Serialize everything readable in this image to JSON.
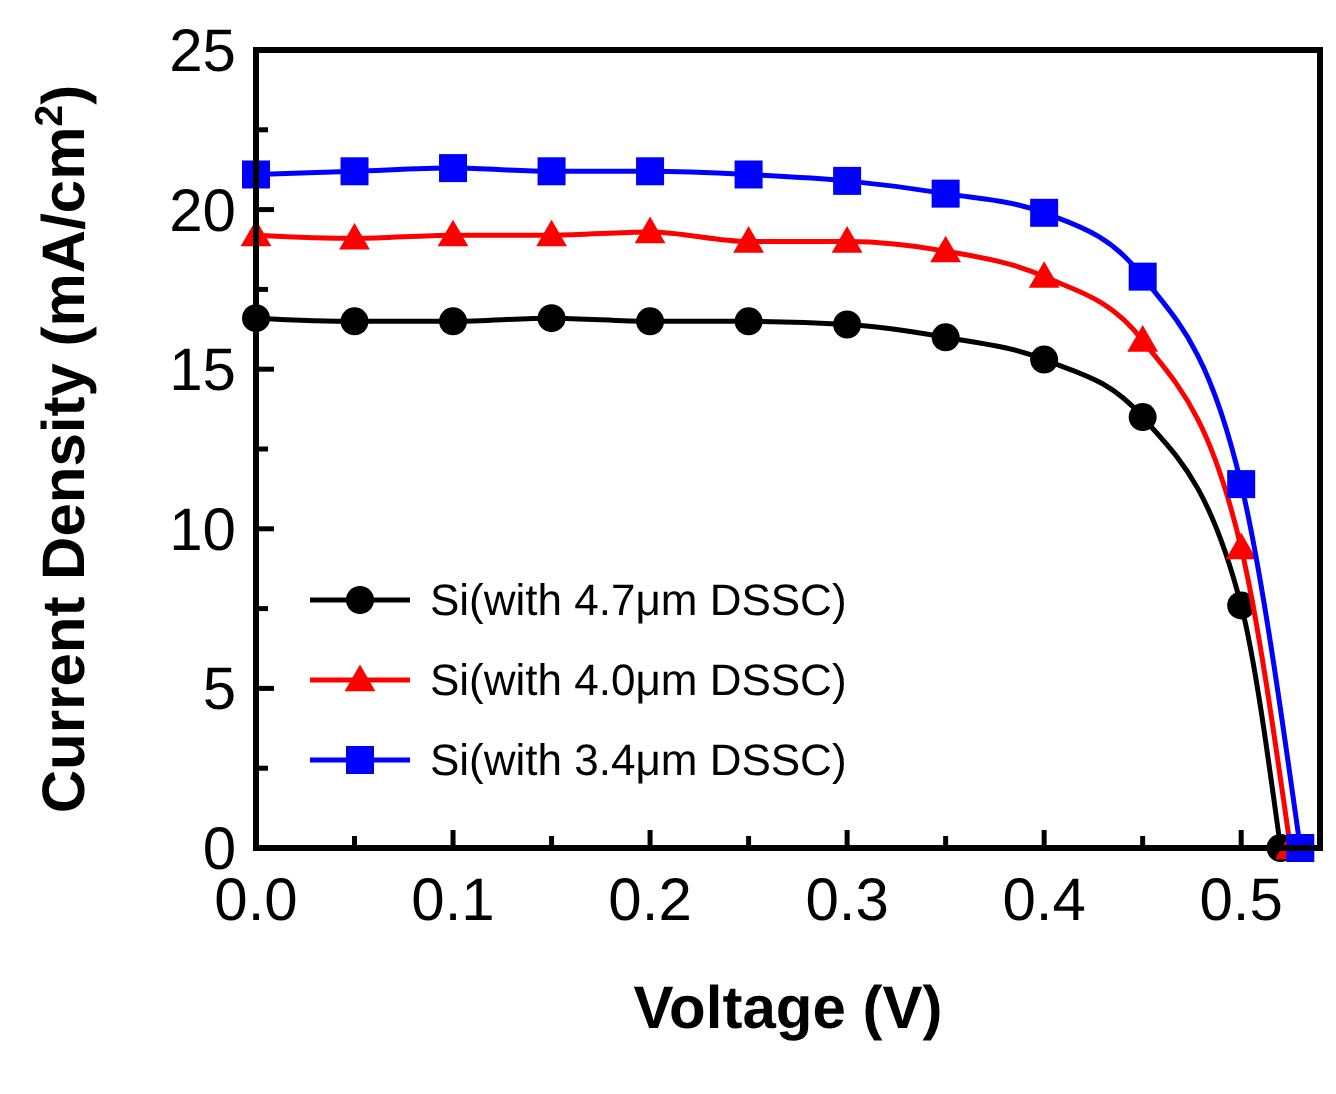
{
  "chart_data": {
    "type": "line",
    "xlabel": "Voltage (V)",
    "ylabel": "Current Density (mA/cm$^{2}$)",
    "x": [
      0,
      0.05,
      0.1,
      0.15,
      0.2,
      0.25,
      0.3,
      0.35,
      0.4,
      0.45,
      0.5,
      0.52
    ],
    "series": [
      {
        "name": "Si(with 4.7μm DSSC)",
        "color": "#000000",
        "marker": "circle",
        "values": [
          16.6,
          16.5,
          16.5,
          16.6,
          16.5,
          16.5,
          16.4,
          16.0,
          15.3,
          13.5,
          7.6,
          0
        ]
      },
      {
        "name": "Si(with 4.0μm DSSC)",
        "color": "#ff0000",
        "marker": "triangle",
        "x": [
          0,
          0.05,
          0.1,
          0.15,
          0.2,
          0.25,
          0.3,
          0.35,
          0.4,
          0.45,
          0.5,
          0.525
        ],
        "values": [
          19.2,
          19.1,
          19.2,
          19.2,
          19.3,
          19.0,
          19.0,
          18.7,
          17.9,
          15.9,
          9.4,
          0
        ]
      },
      {
        "name": "Si(with 3.4μm DSSC)",
        "color": "#0000ff",
        "marker": "square",
        "x": [
          0,
          0.05,
          0.1,
          0.15,
          0.2,
          0.25,
          0.3,
          0.35,
          0.4,
          0.45,
          0.5,
          0.53
        ],
        "values": [
          21.1,
          21.2,
          21.3,
          21.2,
          21.2,
          21.1,
          20.9,
          20.5,
          19.9,
          17.9,
          11.4,
          0
        ]
      }
    ],
    "xlim": [
      0,
      0.54
    ],
    "ylim": [
      0,
      25
    ],
    "xticks": [
      {
        "value": 0,
        "label": "0.0"
      },
      {
        "value": 0.05,
        "label": null
      },
      0.1,
      {
        "value": 0.15,
        "label": null
      },
      0.2,
      {
        "value": 0.25,
        "label": null
      },
      0.3,
      {
        "value": 0.35,
        "label": null
      },
      0.4,
      {
        "value": 0.45,
        "label": null
      },
      0.5
    ],
    "yticks": [
      0,
      {
        "value": 2.5,
        "label": null
      },
      5,
      {
        "value": 7.5,
        "label": null
      },
      10,
      {
        "value": 12.5,
        "label": null
      },
      15,
      {
        "value": 17.5,
        "label": null
      },
      20,
      {
        "value": 22.5,
        "label": null
      },
      25
    ],
    "grid": false,
    "legend": "bottom left",
    "line_style": "solid"
  }
}
